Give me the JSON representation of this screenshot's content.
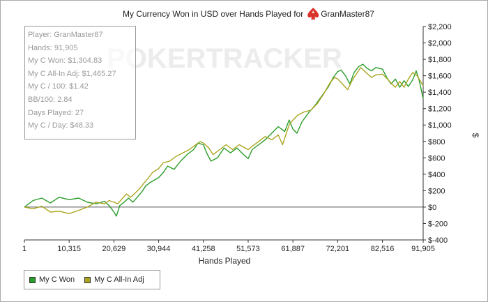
{
  "chart_data": {
    "type": "line",
    "title": "My Currency Won in USD over Hands Played for",
    "title_player": "GranMaster87",
    "watermark": "POKERTRACKER",
    "xlabel": "Hands Played",
    "ylabel": "$",
    "xlim": [
      1,
      91905
    ],
    "ylim": [
      -400,
      2200
    ],
    "x_ticks": [
      1,
      10315,
      20629,
      30944,
      41258,
      51573,
      61887,
      72201,
      82516,
      91905
    ],
    "x_tick_labels": [
      "1",
      "10,315",
      "20,629",
      "30,944",
      "41,258",
      "51,573",
      "61,887",
      "72,201",
      "82,516",
      "91,905"
    ],
    "y_ticks": [
      -400,
      -200,
      0,
      200,
      400,
      600,
      800,
      1000,
      1200,
      1400,
      1600,
      1800,
      2000,
      2200
    ],
    "y_tick_labels": [
      "$-400",
      "$-200",
      "$0",
      "$200",
      "$400",
      "$600",
      "$800",
      "$1,000",
      "$1,200",
      "$1,400",
      "$1,600",
      "$1,800",
      "$2,000",
      "$2,200"
    ],
    "grid": false,
    "legend_position": "bottom-left",
    "series": [
      {
        "name": "My C Won",
        "color": "#2a9c2a",
        "points": [
          [
            1,
            0
          ],
          [
            2000,
            80
          ],
          [
            4000,
            110
          ],
          [
            6000,
            50
          ],
          [
            8000,
            120
          ],
          [
            10315,
            90
          ],
          [
            12500,
            110
          ],
          [
            14500,
            60
          ],
          [
            16500,
            40
          ],
          [
            18500,
            70
          ],
          [
            19500,
            20
          ],
          [
            20629,
            -60
          ],
          [
            21200,
            -110
          ],
          [
            22000,
            20
          ],
          [
            23000,
            60
          ],
          [
            24000,
            110
          ],
          [
            25000,
            60
          ],
          [
            26000,
            120
          ],
          [
            27000,
            180
          ],
          [
            28000,
            260
          ],
          [
            29000,
            300
          ],
          [
            30944,
            360
          ],
          [
            32000,
            420
          ],
          [
            33000,
            500
          ],
          [
            34500,
            460
          ],
          [
            36000,
            560
          ],
          [
            37500,
            640
          ],
          [
            39000,
            700
          ],
          [
            40000,
            780
          ],
          [
            41258,
            760
          ],
          [
            42000,
            660
          ],
          [
            43000,
            560
          ],
          [
            44500,
            600
          ],
          [
            46000,
            720
          ],
          [
            47500,
            660
          ],
          [
            49000,
            720
          ],
          [
            50500,
            640
          ],
          [
            51573,
            590
          ],
          [
            52500,
            700
          ],
          [
            54000,
            760
          ],
          [
            55500,
            820
          ],
          [
            57000,
            900
          ],
          [
            58500,
            980
          ],
          [
            60000,
            920
          ],
          [
            61000,
            1060
          ],
          [
            61887,
            950
          ],
          [
            62800,
            900
          ],
          [
            64000,
            1040
          ],
          [
            65500,
            1150
          ],
          [
            67000,
            1240
          ],
          [
            68500,
            1350
          ],
          [
            70000,
            1460
          ],
          [
            71200,
            1580
          ],
          [
            72201,
            1650
          ],
          [
            73000,
            1670
          ],
          [
            74000,
            1600
          ],
          [
            75000,
            1500
          ],
          [
            76000,
            1640
          ],
          [
            77000,
            1710
          ],
          [
            78000,
            1740
          ],
          [
            79000,
            1690
          ],
          [
            80000,
            1660
          ],
          [
            81000,
            1700
          ],
          [
            82516,
            1680
          ],
          [
            83500,
            1580
          ],
          [
            84500,
            1500
          ],
          [
            85500,
            1560
          ],
          [
            86500,
            1460
          ],
          [
            87500,
            1540
          ],
          [
            88500,
            1470
          ],
          [
            89500,
            1550
          ],
          [
            90300,
            1660
          ],
          [
            91000,
            1540
          ],
          [
            91905,
            1320
          ]
        ]
      },
      {
        "name": "My C All-In Adj",
        "color": "#a9a51e",
        "points": [
          [
            1,
            0
          ],
          [
            2000,
            -20
          ],
          [
            4000,
            10
          ],
          [
            6000,
            -60
          ],
          [
            8000,
            -50
          ],
          [
            10315,
            -80
          ],
          [
            12500,
            -40
          ],
          [
            14500,
            0
          ],
          [
            16500,
            60
          ],
          [
            18500,
            40
          ],
          [
            19500,
            80
          ],
          [
            20629,
            60
          ],
          [
            21500,
            40
          ],
          [
            22500,
            100
          ],
          [
            23500,
            160
          ],
          [
            24500,
            120
          ],
          [
            25500,
            170
          ],
          [
            26500,
            220
          ],
          [
            27500,
            290
          ],
          [
            28500,
            350
          ],
          [
            29500,
            420
          ],
          [
            30944,
            470
          ],
          [
            32000,
            540
          ],
          [
            33500,
            560
          ],
          [
            35000,
            620
          ],
          [
            36500,
            660
          ],
          [
            38000,
            700
          ],
          [
            39500,
            760
          ],
          [
            40500,
            800
          ],
          [
            41258,
            780
          ],
          [
            42500,
            720
          ],
          [
            43500,
            640
          ],
          [
            45000,
            700
          ],
          [
            46500,
            760
          ],
          [
            48000,
            700
          ],
          [
            49500,
            760
          ],
          [
            51573,
            700
          ],
          [
            52500,
            740
          ],
          [
            54000,
            800
          ],
          [
            55500,
            860
          ],
          [
            57000,
            820
          ],
          [
            58500,
            880
          ],
          [
            59500,
            760
          ],
          [
            61000,
            1000
          ],
          [
            61887,
            1060
          ],
          [
            63000,
            1120
          ],
          [
            64500,
            1160
          ],
          [
            66000,
            1180
          ],
          [
            67500,
            1260
          ],
          [
            69000,
            1380
          ],
          [
            70500,
            1520
          ],
          [
            71500,
            1580
          ],
          [
            72201,
            1560
          ],
          [
            73500,
            1490
          ],
          [
            74500,
            1430
          ],
          [
            75500,
            1540
          ],
          [
            76500,
            1620
          ],
          [
            77500,
            1700
          ],
          [
            78500,
            1650
          ],
          [
            80000,
            1580
          ],
          [
            81000,
            1610
          ],
          [
            82516,
            1620
          ],
          [
            83500,
            1570
          ],
          [
            84500,
            1510
          ],
          [
            85500,
            1460
          ],
          [
            86500,
            1530
          ],
          [
            87500,
            1460
          ],
          [
            88500,
            1560
          ],
          [
            89500,
            1640
          ],
          [
            90500,
            1600
          ],
          [
            91905,
            1480
          ]
        ]
      }
    ]
  },
  "stats": [
    "Player: GranMaster87",
    "Hands: 91,905",
    "My C Won: $1,304.83",
    "My C All-In Adj: $1,465.27",
    "My C / 100: $1.42",
    "BB/100: 2.84",
    "Days Played: 27",
    "My C / Day: $48.33"
  ]
}
